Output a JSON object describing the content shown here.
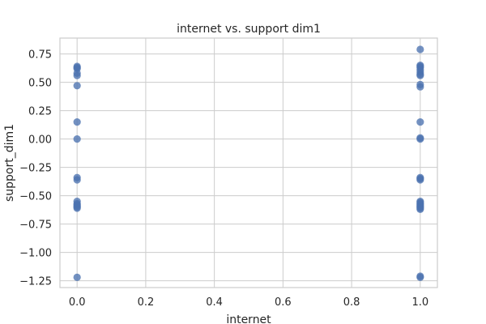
{
  "chart_data": {
    "type": "scatter",
    "title": "internet vs. support dim1",
    "xlabel": "internet",
    "ylabel": "support_dim1",
    "xlim": [
      -0.05,
      1.05
    ],
    "ylim": [
      -1.31,
      0.89
    ],
    "xticks": [
      0.0,
      0.2,
      0.4,
      0.6,
      0.8,
      1.0
    ],
    "xtick_labels": [
      "0.0",
      "0.2",
      "0.4",
      "0.6",
      "0.8",
      "1.0"
    ],
    "yticks": [
      0.75,
      0.5,
      0.25,
      0.0,
      -0.25,
      -0.5,
      -0.75,
      -1.0,
      -1.25
    ],
    "ytick_labels": [
      "0.75",
      "0.50",
      "0.25",
      "0.00",
      "−0.25",
      "−0.50",
      "−0.75",
      "−1.00",
      "−1.25"
    ],
    "grid": true,
    "marker_color": "#4c72b0",
    "series": [
      {
        "x": [
          0,
          0,
          0,
          0,
          0,
          0,
          0,
          0,
          0,
          0,
          0,
          0,
          0,
          0,
          0,
          0,
          0,
          1,
          1,
          1,
          1,
          1,
          1,
          1,
          1,
          1,
          1,
          1,
          1,
          1,
          1,
          1,
          1,
          1,
          1,
          1,
          1,
          1,
          1,
          1,
          1,
          1,
          1
        ],
        "y": [
          0.64,
          0.63,
          0.62,
          0.58,
          0.56,
          0.47,
          0.15,
          0.0,
          -0.34,
          -0.36,
          -0.55,
          -0.57,
          -0.58,
          -0.59,
          -0.6,
          -0.61,
          -1.22,
          0.79,
          0.65,
          0.64,
          0.63,
          0.61,
          0.59,
          0.57,
          0.56,
          0.48,
          0.46,
          0.15,
          0.01,
          0.0,
          -0.34,
          -0.35,
          -0.36,
          -0.55,
          -0.56,
          -0.57,
          -0.58,
          -0.59,
          -0.6,
          -0.61,
          -0.62,
          -1.21,
          -1.22
        ]
      }
    ]
  }
}
